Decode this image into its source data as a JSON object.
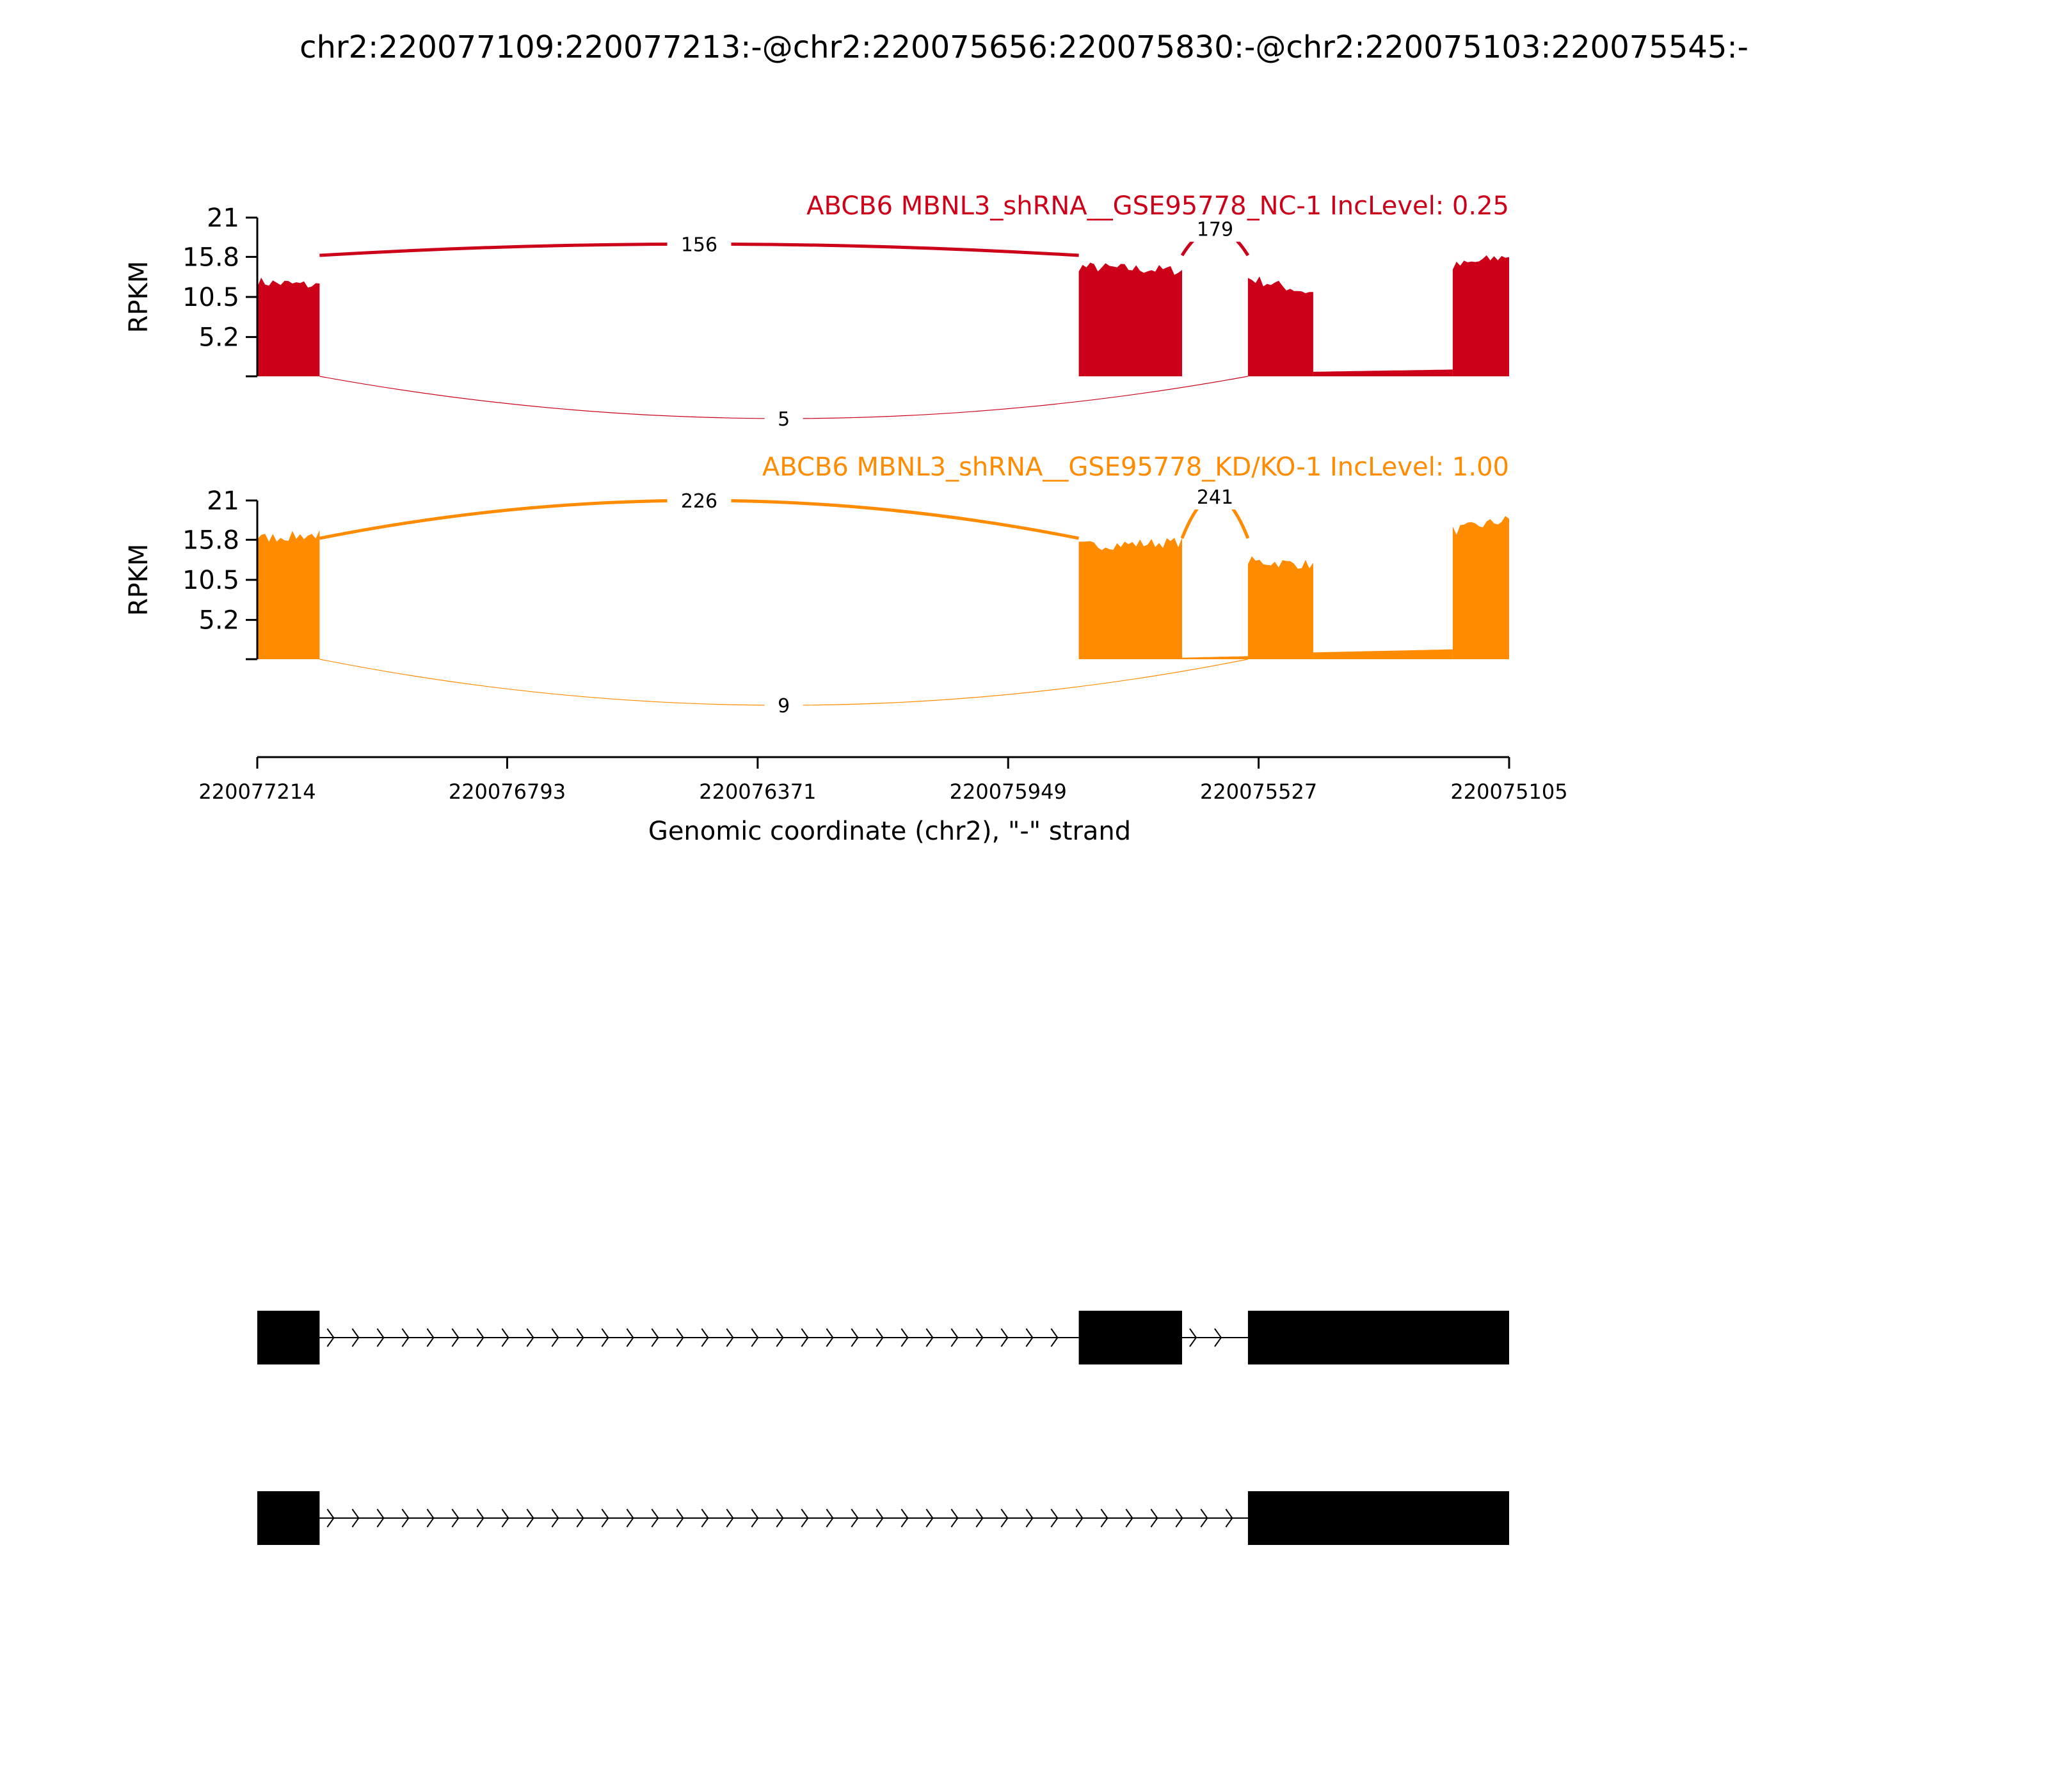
{
  "chart_data": {
    "type": "sashimi",
    "title": "chr2:220077109:220077213:-@chr2:220075656:220075830:-@chr2:220075103:220075545:-",
    "xlabel": "Genomic coordinate (chr2), \"-\" strand",
    "ylabel": "RPKM",
    "xlim": [
      220077214,
      220075105
    ],
    "x_ticks": [
      "220077214",
      "220076793",
      "220076371",
      "220075949",
      "220075527",
      "220075105"
    ],
    "y_ticks": [
      "21",
      "15.8",
      "10.5",
      "5.2"
    ],
    "ylim": [
      0,
      21
    ],
    "exons": [
      {
        "start": 220077214,
        "end": 220077109
      },
      {
        "start": 220075830,
        "end": 220075656
      },
      {
        "start": 220075545,
        "end": 220075105
      }
    ],
    "tracks": [
      {
        "name": "ABCB6 MBNL3_shRNA__GSE95778_NC-1 IncLevel: 0.25",
        "color": "#cc0119",
        "coverage": [
          {
            "from": 220077214,
            "to": 220077109,
            "left": 12.5,
            "right": 12.0
          },
          {
            "from": 220075830,
            "to": 220075656,
            "left": 14.5,
            "right": 14.0
          },
          {
            "from": 220075545,
            "to": 220075435,
            "left": 13.0,
            "right": 11.0
          },
          {
            "from": 220075435,
            "to": 220075200,
            "left": 0.6,
            "right": 0.9
          },
          {
            "from": 220075200,
            "to": 220075105,
            "left": 14.5,
            "right": 16.0
          }
        ],
        "junctions": [
          {
            "from": 220077109,
            "to": 220075830,
            "count": "156",
            "position": "above",
            "height": 17.5
          },
          {
            "from": 220075656,
            "to": 220075545,
            "count": "179",
            "position": "above",
            "height": 19.5
          },
          {
            "from": 220077109,
            "to": 220075545,
            "count": "5",
            "position": "below",
            "height": 5.5
          }
        ]
      },
      {
        "name": "ABCB6 MBNL3_shRNA__GSE95778_KD/KO-1 IncLevel: 1.00",
        "color": "#ff8b00",
        "coverage": [
          {
            "from": 220077214,
            "to": 220077109,
            "left": 16.0,
            "right": 16.5
          },
          {
            "from": 220075830,
            "to": 220075656,
            "left": 15.0,
            "right": 15.5
          },
          {
            "from": 220075656,
            "to": 220075545,
            "left": 0.2,
            "right": 0.4
          },
          {
            "from": 220075545,
            "to": 220075435,
            "left": 13.0,
            "right": 12.5
          },
          {
            "from": 220075435,
            "to": 220075200,
            "left": 0.9,
            "right": 1.3
          },
          {
            "from": 220075200,
            "to": 220075105,
            "left": 17.0,
            "right": 18.5
          }
        ],
        "junctions": [
          {
            "from": 220077109,
            "to": 220075830,
            "count": "226",
            "position": "above",
            "height": 21.0
          },
          {
            "from": 220075656,
            "to": 220075545,
            "count": "241",
            "position": "above",
            "height": 21.5
          },
          {
            "from": 220077109,
            "to": 220075545,
            "count": "9",
            "position": "below",
            "height": 6.0
          }
        ]
      }
    ],
    "isoforms": [
      {
        "exons": [
          [
            220077214,
            220077109
          ],
          [
            220075830,
            220075656
          ],
          [
            220075545,
            220075105
          ]
        ]
      },
      {
        "exons": [
          [
            220077214,
            220077109
          ],
          [
            220075545,
            220075105
          ]
        ]
      }
    ]
  }
}
